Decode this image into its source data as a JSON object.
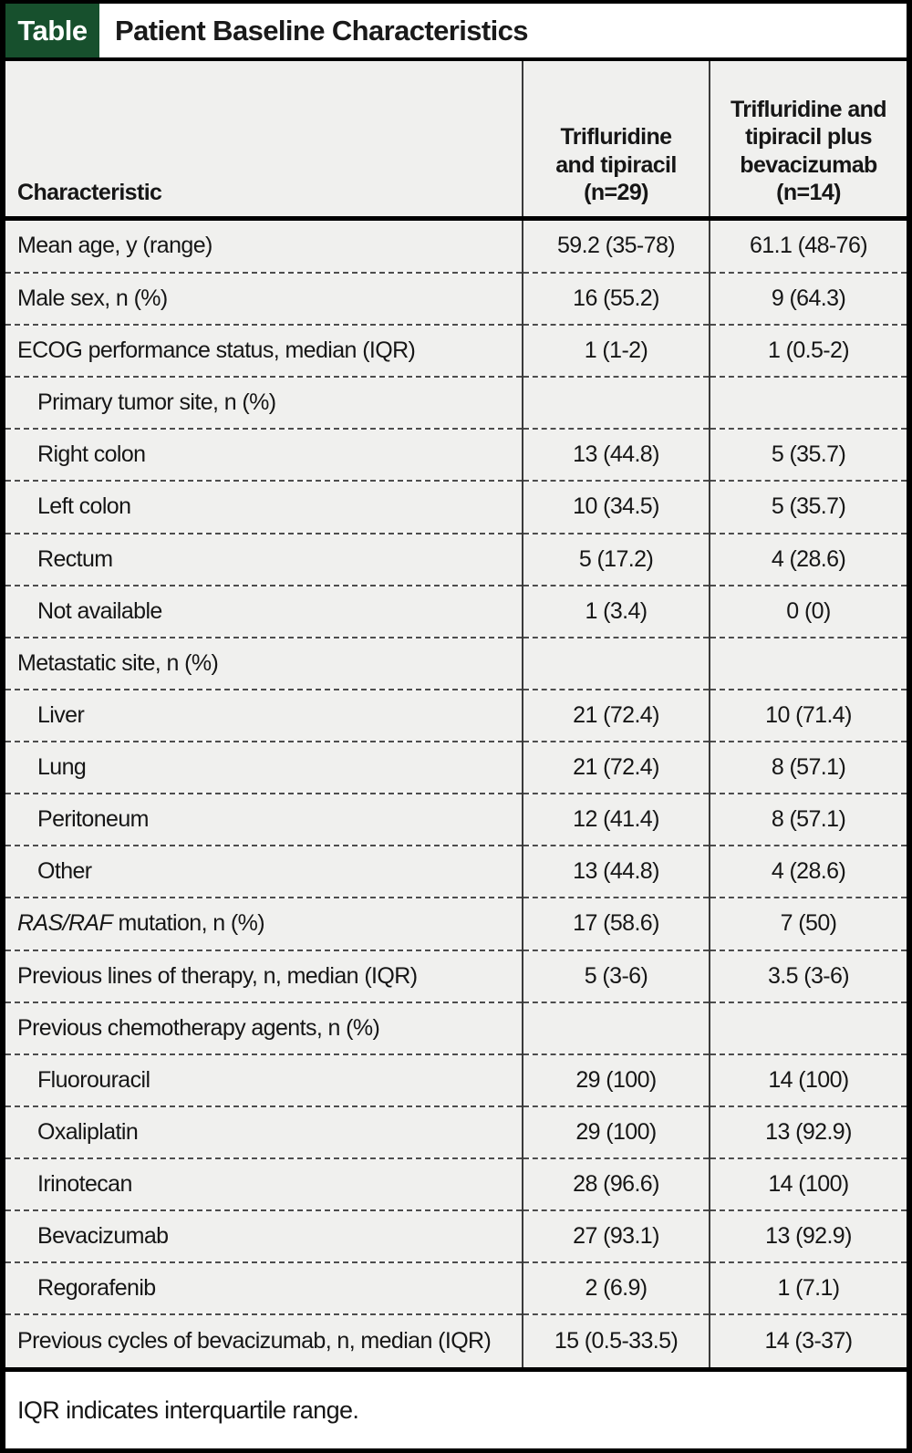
{
  "badge_label": "Table",
  "title": "Patient Baseline Characteristics",
  "columns": {
    "characteristic": "Characteristic",
    "arm1": "Trifluridine\nand tipiracil\n(n=29)",
    "arm2": "Trifluridine and\ntipiracil plus\nbevacizumab\n(n=14)"
  },
  "rows": [
    {
      "label": "Mean age, y (range)",
      "indent": false,
      "values": [
        "59.2 (35-78)",
        "61.1 (48-76)"
      ]
    },
    {
      "label": "Male sex, n (%)",
      "indent": false,
      "values": [
        "16 (55.2)",
        "9 (64.3)"
      ]
    },
    {
      "label": "ECOG performance status, median (IQR)",
      "indent": false,
      "values": [
        "1 (1-2)",
        "1 (0.5-2)"
      ]
    },
    {
      "label": "Primary tumor site, n (%)",
      "indent": true,
      "values": [
        "",
        ""
      ]
    },
    {
      "label": "Right colon",
      "indent": true,
      "values": [
        "13 (44.8)",
        "5 (35.7)"
      ]
    },
    {
      "label": "Left colon",
      "indent": true,
      "values": [
        "10 (34.5)",
        "5 (35.7)"
      ]
    },
    {
      "label": "Rectum",
      "indent": true,
      "values": [
        "5 (17.2)",
        "4 (28.6)"
      ]
    },
    {
      "label": "Not available",
      "indent": true,
      "values": [
        "1 (3.4)",
        "0 (0)"
      ]
    },
    {
      "label": "Metastatic site, n (%)",
      "indent": false,
      "values": [
        "",
        ""
      ]
    },
    {
      "label": "Liver",
      "indent": true,
      "values": [
        "21 (72.4)",
        "10 (71.4)"
      ]
    },
    {
      "label": "Lung",
      "indent": true,
      "values": [
        "21 (72.4)",
        "8 (57.1)"
      ]
    },
    {
      "label": "Peritoneum",
      "indent": true,
      "values": [
        "12 (41.4)",
        "8 (57.1)"
      ]
    },
    {
      "label": "Other",
      "indent": true,
      "values": [
        "13 (44.8)",
        "4 (28.6)"
      ]
    },
    {
      "label_italic": "RAS/RAF",
      "label": " mutation, n (%)",
      "indent": false,
      "values": [
        "17 (58.6)",
        "7 (50)"
      ]
    },
    {
      "label": "Previous lines of therapy, n, median (IQR)",
      "indent": false,
      "values": [
        "5 (3-6)",
        "3.5 (3-6)"
      ]
    },
    {
      "label": "Previous chemotherapy agents, n (%)",
      "indent": false,
      "values": [
        "",
        ""
      ]
    },
    {
      "label": "Fluorouracil",
      "indent": true,
      "values": [
        "29 (100)",
        "14 (100)"
      ]
    },
    {
      "label": "Oxaliplatin",
      "indent": true,
      "values": [
        "29 (100)",
        "13 (92.9)"
      ]
    },
    {
      "label": "Irinotecan",
      "indent": true,
      "values": [
        "28 (96.6)",
        "14 (100)"
      ]
    },
    {
      "label": "Bevacizumab",
      "indent": true,
      "values": [
        "27 (93.1)",
        "13 (92.9)"
      ]
    },
    {
      "label": "Regorafenib",
      "indent": true,
      "values": [
        "2 (6.9)",
        "1 (7.1)"
      ]
    },
    {
      "label": "Previous cycles of bevacizumab, n, median (IQR)",
      "indent": false,
      "values": [
        "15 (0.5-33.5)",
        "14 (3-37)"
      ]
    }
  ],
  "footnote": "IQR indicates interquartile range.",
  "colors": {
    "badge_green": "#17502d",
    "cell_bg": "#f0f0ee",
    "border_black": "#000000",
    "text": "#161616"
  }
}
